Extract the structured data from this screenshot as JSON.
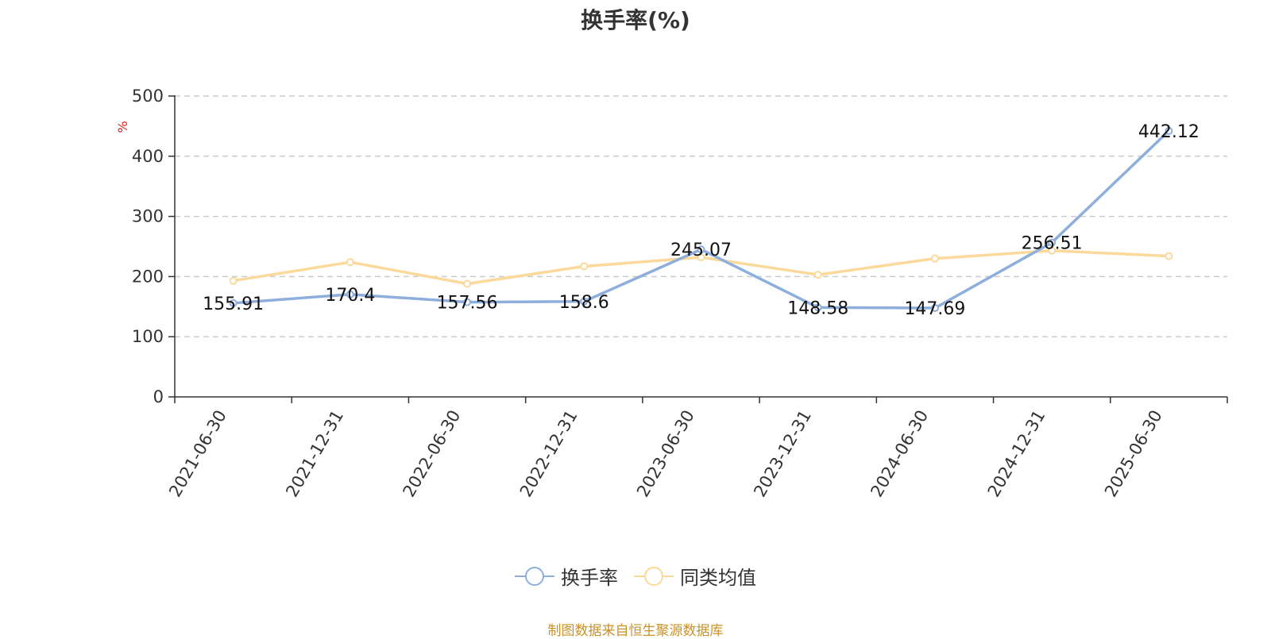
{
  "chart_data": {
    "type": "line",
    "title": "换手率(%)",
    "ylabel": "%",
    "xlabel": "",
    "ylim": [
      0,
      500
    ],
    "yticks": [
      0,
      100,
      200,
      300,
      400,
      500
    ],
    "grid": true,
    "legend_position": "bottom",
    "categories": [
      "2021-06-30",
      "2021-12-31",
      "2022-06-30",
      "2022-12-31",
      "2023-06-30",
      "2023-12-31",
      "2024-06-30",
      "2024-12-31",
      "2025-06-30"
    ],
    "series": [
      {
        "name": "换手率",
        "color": "#8eaedb",
        "values": [
          155.91,
          170.4,
          157.56,
          158.6,
          245.07,
          148.58,
          147.69,
          256.51,
          442.12
        ],
        "labels": [
          "155.91",
          "170.4",
          "157.56",
          "158.6",
          "245.07",
          "148.58",
          "147.69",
          "256.51",
          "442.12"
        ]
      },
      {
        "name": "同类均值",
        "color": "#fbd99a",
        "values": [
          193,
          224,
          188,
          217,
          232,
          203,
          230,
          243,
          234
        ]
      }
    ]
  },
  "source_note": "制图数据来自恒生聚源数据库"
}
